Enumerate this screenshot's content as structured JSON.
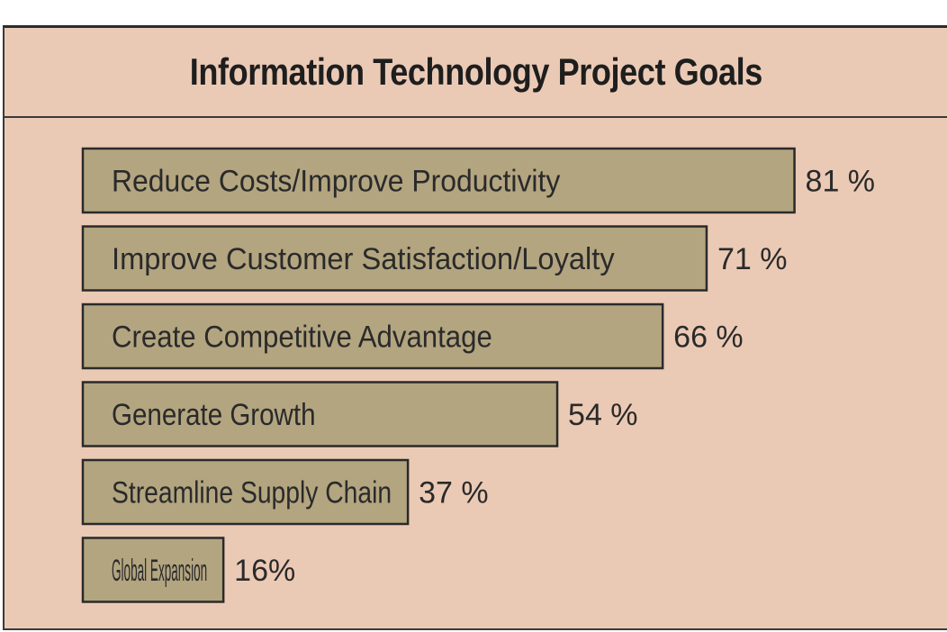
{
  "chart_data": {
    "type": "bar",
    "orientation": "horizontal",
    "title": "Information Technology Project Goals",
    "categories": [
      "Reduce Costs/Improve Productivity",
      "Improve Customer Satisfaction/Loyalty",
      "Create Competitive Advantage",
      "Generate Growth",
      "Streamline Supply Chain",
      "Global Expansion"
    ],
    "values": [
      81,
      71,
      66,
      54,
      37,
      16
    ],
    "value_labels": [
      "81 %",
      "71 %",
      "66 %",
      "54 %",
      "37 %",
      "16%"
    ],
    "unit": "%",
    "xlim": [
      0,
      100
    ],
    "xlabel": "",
    "ylabel": "",
    "grid": false,
    "legend": "none",
    "colors": {
      "background": "#ebcab5",
      "bar_fill": "#b3a580",
      "border": "#2a2a2a"
    }
  }
}
